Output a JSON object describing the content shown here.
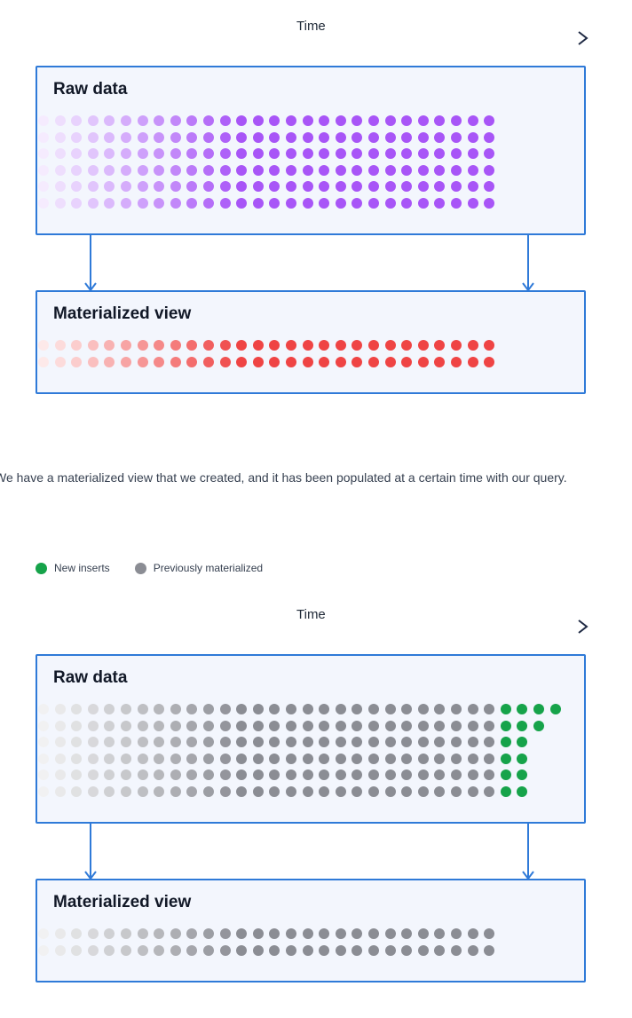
{
  "diagram1": {
    "time_label": "Time",
    "raw_title": "Raw data",
    "mv_title": "Materialized view"
  },
  "caption": "We have a materialized view that we created, and it has been populated at a certain time with our query.",
  "legend": {
    "new_label": "New inserts",
    "old_label": "Previously materialized",
    "new_color": "#16a34a",
    "old_color": "#8b8d94"
  },
  "diagram2": {
    "time_label": "Time",
    "raw_title": "Raw data",
    "mv_title": "Materialized view"
  },
  "colors": {
    "raw_dot": "#a855f7",
    "mv_dot": "#ef4444",
    "gray_dot": "#8b8d94",
    "green_dot": "#16a34a",
    "border": "#2f7ad8",
    "panel_bg": "#f3f6fd"
  },
  "grids": {
    "columns": 28,
    "raw_rows": 6,
    "mv_rows": 2,
    "new_inserts_per_row": [
      4,
      3,
      2,
      2,
      2,
      2
    ]
  }
}
